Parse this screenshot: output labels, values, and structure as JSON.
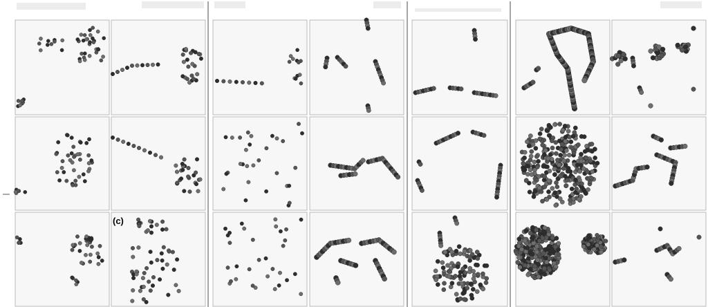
{
  "figure": {
    "panel_tag": "(c)",
    "colors": {
      "background": "#ffffff",
      "panel_fill": "#f7f7f7",
      "panel_border": "#b9b9b9",
      "separator": "#6a6a6a",
      "bead_dark": "#2e2e2e",
      "bead_mid": "#555555",
      "bead_light": "#6e6e6e"
    },
    "groups": [
      {
        "name": "group-1",
        "columns": 2,
        "rows": 3,
        "style": "sparse-beads"
      },
      {
        "name": "group-2",
        "columns": 2,
        "rows": 3,
        "style": "sparse-to-chains"
      },
      {
        "name": "group-3",
        "columns": 1,
        "rows": 3,
        "style": "short-chains"
      },
      {
        "name": "group-4",
        "columns": 2,
        "rows": 3,
        "style": "dense-chains"
      }
    ]
  }
}
